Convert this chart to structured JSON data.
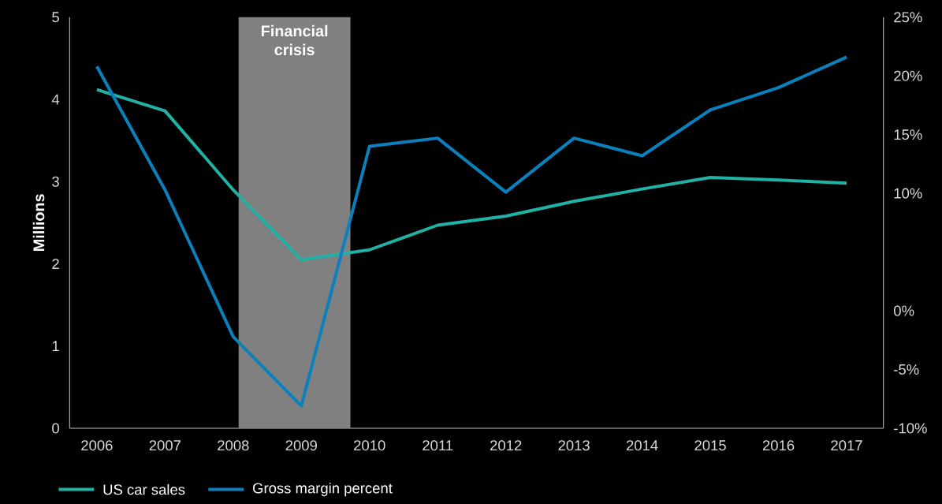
{
  "chart_data": {
    "type": "line",
    "ylabel": "Millions",
    "marker": "none",
    "legend": "bottom",
    "x": [
      2006,
      2007,
      2008,
      2009,
      2010,
      2011,
      2012,
      2013,
      2014,
      2015,
      2016,
      2017
    ],
    "xlim": [
      2005.6,
      2017.54
    ],
    "xticks": [
      2006,
      2007,
      2008,
      2009,
      2010,
      2011,
      2012,
      2013,
      2014,
      2015,
      2016,
      2017
    ],
    "ylim": [
      0,
      5
    ],
    "yticks": [
      0,
      1,
      2,
      3,
      4,
      5
    ],
    "y2lim": [
      -10,
      25
    ],
    "y2ticks": [
      {
        "value": -10,
        "label": "-10%"
      },
      {
        "value": -5,
        "label": "-5%"
      },
      {
        "value": 0,
        "label": "0%"
      },
      {
        "value": 10,
        "label": "10%"
      },
      {
        "value": 15,
        "label": "15%"
      },
      {
        "value": 20,
        "label": "20%"
      },
      {
        "value": 25,
        "label": "25%"
      }
    ],
    "bands": [
      {
        "axis": "x",
        "from": 2008.08,
        "to": 2009.72,
        "label": "Financial crisis",
        "color": "#808080"
      }
    ],
    "series": [
      {
        "name": "US car sales",
        "color": "#20b2a4",
        "values": [
          4.12,
          3.86,
          2.9,
          2.05,
          2.17,
          2.47,
          2.58,
          2.76,
          2.91,
          3.05,
          3.02,
          2.98
        ]
      },
      {
        "name": "Gross margin percent",
        "color": "#0a80bd",
        "axis": "y2",
        "values": [
          20.8,
          10.3,
          -2.2,
          -8.1,
          14.0,
          14.7,
          10.1,
          14.7,
          13.2,
          17.1,
          19.0,
          21.6
        ]
      }
    ]
  }
}
